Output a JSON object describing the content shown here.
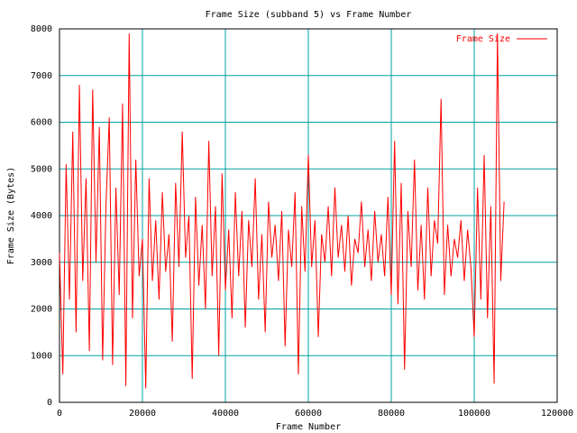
{
  "chart_data": {
    "type": "line",
    "title": "Frame Size (subband 5) vs Frame Number",
    "x_label": "Frame Number",
    "y_label": "Frame Size (Bytes)",
    "xlim": [
      0,
      120000
    ],
    "ylim": [
      0,
      8000
    ],
    "xticks": [
      0,
      20000,
      40000,
      60000,
      80000,
      100000,
      120000
    ],
    "yticks": [
      0,
      1000,
      2000,
      3000,
      4000,
      5000,
      6000,
      7000,
      8000
    ],
    "grid": true,
    "grid_color": "#00a0a0",
    "legend": "top-right",
    "x": [
      0,
      800,
      1600,
      2400,
      3200,
      4000,
      4800,
      5600,
      6400,
      7200,
      8000,
      8800,
      9600,
      10400,
      11200,
      12000,
      12800,
      13600,
      14400,
      15200,
      16000,
      16800,
      17600,
      18400,
      19200,
      20000,
      20800,
      21600,
      22400,
      23200,
      24000,
      24800,
      25600,
      26400,
      27200,
      28000,
      28800,
      29600,
      30400,
      31200,
      32000,
      32800,
      33600,
      34400,
      35200,
      36000,
      36800,
      37600,
      38400,
      39200,
      40000,
      40800,
      41600,
      42400,
      43200,
      44000,
      44800,
      45600,
      46400,
      47200,
      48000,
      48800,
      49600,
      50400,
      51200,
      52000,
      52800,
      53600,
      54400,
      55200,
      56000,
      56800,
      57600,
      58400,
      59200,
      60000,
      60800,
      61600,
      62400,
      63200,
      64000,
      64800,
      65600,
      66400,
      67200,
      68000,
      68800,
      69600,
      70400,
      71200,
      72000,
      72800,
      73600,
      74400,
      75200,
      76000,
      76800,
      77600,
      78400,
      79200,
      80000,
      80800,
      81600,
      82400,
      83200,
      84000,
      84800,
      85600,
      86400,
      87200,
      88000,
      88800,
      89600,
      90400,
      91200,
      92000,
      92800,
      93600,
      94400,
      95200,
      96000,
      96800,
      97600,
      98400,
      99200,
      100000,
      100800,
      101600,
      102400,
      103200,
      104000,
      104800,
      105600,
      106400,
      107200
    ],
    "series": [
      {
        "name": "Frame Size",
        "color": "#ff0000",
        "values": [
          3200,
          600,
          5100,
          2200,
          5800,
          1500,
          6800,
          2600,
          4800,
          1100,
          6700,
          3000,
          5900,
          900,
          4200,
          6100,
          800,
          4600,
          2300,
          6400,
          350,
          7900,
          1800,
          5200,
          2700,
          3500,
          300,
          4800,
          2600,
          3900,
          2200,
          4500,
          2800,
          3600,
          1300,
          4700,
          2900,
          5800,
          3100,
          4000,
          500,
          4400,
          2500,
          3800,
          2000,
          5600,
          2700,
          4200,
          1000,
          4900,
          2400,
          3700,
          1800,
          4500,
          2700,
          4100,
          1600,
          3900,
          2900,
          4800,
          2200,
          3600,
          1500,
          4300,
          3100,
          3800,
          2600,
          4100,
          1200,
          3700,
          2900,
          4500,
          600,
          4200,
          2800,
          5300,
          2900,
          3900,
          1400,
          3600,
          3000,
          4200,
          2700,
          4600,
          3100,
          3800,
          2800,
          4000,
          2500,
          3500,
          3200,
          4300,
          2900,
          3700,
          2600,
          4100,
          3000,
          3600,
          2700,
          4400,
          2300,
          5600,
          2100,
          4700,
          700,
          4100,
          2900,
          5200,
          2400,
          3800,
          2200,
          4600,
          2700,
          3900,
          3400,
          6500,
          2300,
          3800,
          2700,
          3500,
          3100,
          3900,
          2600,
          3700,
          2900,
          1400,
          4600,
          2200,
          5300,
          1800,
          4200,
          400,
          7900,
          2600,
          4300
        ]
      }
    ]
  }
}
